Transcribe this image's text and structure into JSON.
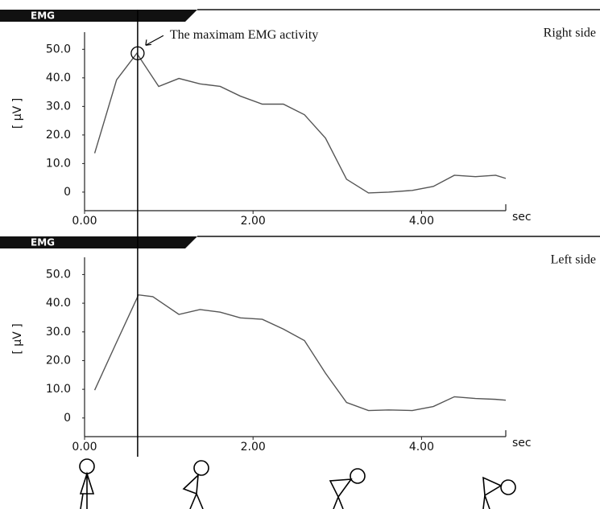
{
  "chart_data": [
    {
      "type": "line",
      "title": "EMG",
      "side_label": "Right side",
      "ylabel": "[ μV ]",
      "xlabel": "sec",
      "color": "#555555",
      "xlim": [
        0,
        5
      ],
      "ylim": [
        -6.5,
        56
      ],
      "xticks": [
        {
          "value": 0,
          "label": "0.00"
        },
        {
          "value": 2,
          "label": "2.00"
        },
        {
          "value": 4,
          "label": "4.00"
        }
      ],
      "yticks": [
        0,
        {
          "value": 10,
          "label": "10.0"
        },
        {
          "value": 20,
          "label": "20.0"
        },
        {
          "value": 30,
          "label": "30.0"
        },
        {
          "value": 40,
          "label": "40.0"
        },
        {
          "value": 50,
          "label": "50.0"
        }
      ],
      "x": [
        0.12,
        0.38,
        0.62,
        0.88,
        1.12,
        1.37,
        1.61,
        1.85,
        2.11,
        2.36,
        2.61,
        2.86,
        3.11,
        3.37,
        3.61,
        3.89,
        4.14,
        4.39,
        4.64,
        4.88,
        5.0
      ],
      "values": [
        13.6,
        39.3,
        48.6,
        37,
        39.8,
        37.9,
        37,
        33.6,
        30.8,
        30.8,
        27.1,
        18.9,
        4.5,
        -0.3,
        0,
        0.6,
        2,
        5.9,
        5.4,
        5.9,
        4.8
      ],
      "annotation": {
        "text": "The maximam EMG activity",
        "x": 0.63,
        "y": 48.6
      }
    },
    {
      "type": "line",
      "title": "EMG",
      "side_label": "Left side",
      "ylabel": "[ μV ]",
      "xlabel": "sec",
      "color": "#555555",
      "xlim": [
        0,
        5
      ],
      "ylim": [
        -6.5,
        56
      ],
      "xticks": [
        {
          "value": 0,
          "label": "0.00"
        },
        {
          "value": 2,
          "label": "2.00"
        },
        {
          "value": 4,
          "label": "4.00"
        }
      ],
      "yticks": [
        0,
        {
          "value": 10,
          "label": "10.0"
        },
        {
          "value": 20,
          "label": "20.0"
        },
        {
          "value": 30,
          "label": "30.0"
        },
        {
          "value": 40,
          "label": "40.0"
        },
        {
          "value": 50,
          "label": "50.0"
        }
      ],
      "x": [
        0.12,
        0.38,
        0.64,
        0.81,
        1.12,
        1.37,
        1.61,
        1.85,
        2.11,
        2.36,
        2.61,
        2.86,
        3.11,
        3.37,
        3.61,
        3.89,
        4.14,
        4.39,
        4.64,
        4.88,
        5.0
      ],
      "values": [
        9.7,
        26.4,
        42.9,
        42.3,
        36.1,
        37.8,
        36.9,
        34.9,
        34.4,
        31,
        27,
        15.6,
        5.4,
        2.6,
        2.8,
        2.6,
        4,
        7.4,
        6.8,
        6.5,
        6.2
      ]
    }
  ]
}
